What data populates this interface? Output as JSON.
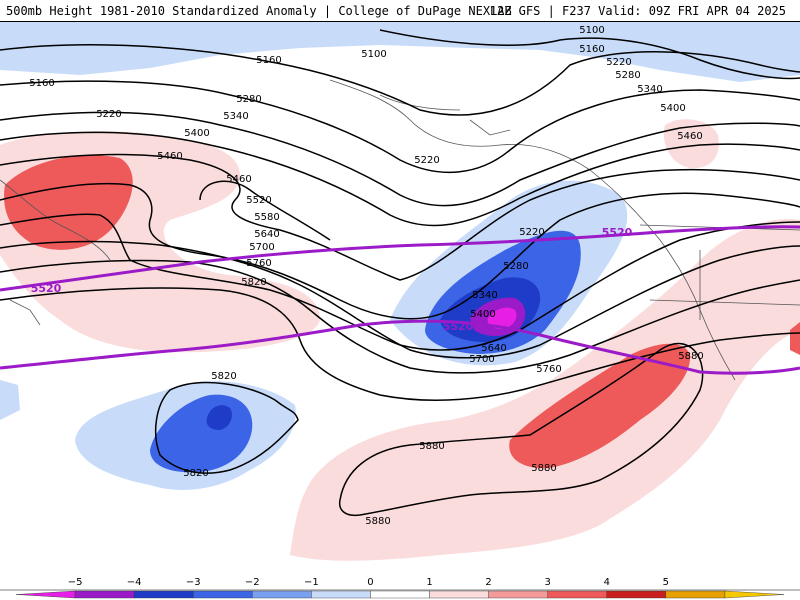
{
  "header": {
    "title_left": "500mb Height 1981-2010 Standardized Anomaly | College of DuPage NEXLAB",
    "title_right": "12Z GFS | F237 Valid: 09Z FRI APR 04 2025"
  },
  "contour_labels": [
    "5100",
    "5100",
    "5160",
    "5160",
    "5160",
    "5220",
    "5220",
    "5220",
    "5220",
    "5280",
    "5280",
    "5280",
    "5340",
    "5340",
    "5340",
    "5400",
    "5400",
    "5400",
    "5460",
    "5460",
    "5460",
    "5520",
    "5580",
    "5640",
    "5640",
    "5700",
    "5700",
    "5760",
    "5760",
    "5820",
    "5820",
    "5820",
    "5880",
    "5880",
    "5880"
  ],
  "purple_labels": [
    "5520",
    "5520",
    "5520"
  ],
  "colorbar": {
    "ticks": [
      "−5",
      "−4",
      "−3",
      "−2",
      "−1",
      "0",
      "1",
      "2",
      "3",
      "4",
      "5"
    ],
    "colors": [
      "#e61ee6",
      "#9b1bc8",
      "#1e3cc8",
      "#3c64e6",
      "#7aa0f0",
      "#c8dcfa",
      "#ffffff",
      "#fadcdc",
      "#f59a9a",
      "#ee5a5a",
      "#c81e1e",
      "#e6a000",
      "#f5c800"
    ]
  }
}
